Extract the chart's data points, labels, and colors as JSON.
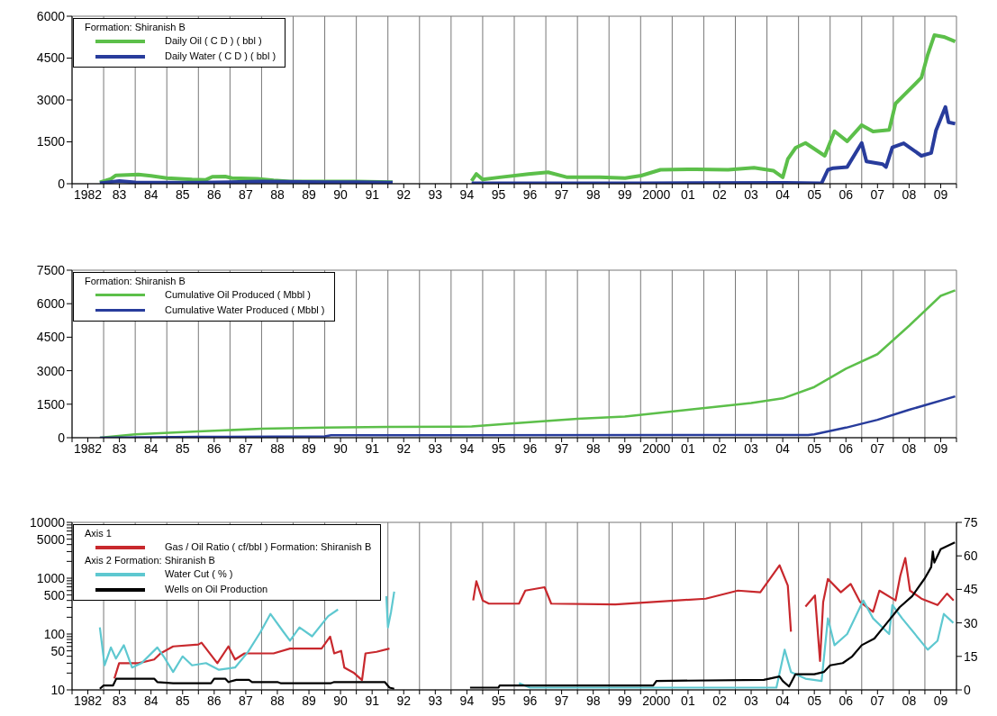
{
  "chart_data": [
    {
      "type": "line",
      "legend_title": "Formation: Shiranish B",
      "legend": "top left",
      "grid": true,
      "xlim": [
        1981.5,
        2009.5
      ],
      "ylim": [
        0,
        6000
      ],
      "yticks": [
        0,
        1500,
        3000,
        4500,
        6000
      ],
      "xticks": [
        {
          "value": 1981.5,
          "label": null
        },
        {
          "value": 1982,
          "label": "1982"
        },
        {
          "value": 1982.5,
          "label": null
        },
        {
          "value": 1983,
          "label": "83"
        },
        {
          "value": 1983.5,
          "label": null
        },
        {
          "value": 1984,
          "label": "84"
        },
        {
          "value": 1984.5,
          "label": null
        },
        {
          "value": 1985,
          "label": "85"
        },
        {
          "value": 1985.5,
          "label": null
        },
        {
          "value": 1986,
          "label": "86"
        },
        {
          "value": 1986.5,
          "label": null
        },
        {
          "value": 1987,
          "label": "87"
        },
        {
          "value": 1987.5,
          "label": null
        },
        {
          "value": 1988,
          "label": "88"
        },
        {
          "value": 1988.5,
          "label": null
        },
        {
          "value": 1989,
          "label": "89"
        },
        {
          "value": 1989.5,
          "label": null
        },
        {
          "value": 1990,
          "label": "90"
        },
        {
          "value": 1990.5,
          "label": null
        },
        {
          "value": 1991,
          "label": "91"
        },
        {
          "value": 1991.5,
          "label": null
        },
        {
          "value": 1992,
          "label": "92"
        },
        {
          "value": 1992.5,
          "label": null
        },
        {
          "value": 1993,
          "label": "93"
        },
        {
          "value": 1993.5,
          "label": null
        },
        {
          "value": 1994,
          "label": "94"
        },
        {
          "value": 1994.5,
          "label": null
        },
        {
          "value": 1995,
          "label": "95"
        },
        {
          "value": 1995.5,
          "label": null
        },
        {
          "value": 1996,
          "label": "96"
        },
        {
          "value": 1996.5,
          "label": null
        },
        {
          "value": 1997,
          "label": "97"
        },
        {
          "value": 1997.5,
          "label": null
        },
        {
          "value": 1998,
          "label": "98"
        },
        {
          "value": 1998.5,
          "label": null
        },
        {
          "value": 1999,
          "label": "99"
        },
        {
          "value": 1999.5,
          "label": null
        },
        {
          "value": 2000,
          "label": "2000"
        },
        {
          "value": 2000.5,
          "label": null
        },
        {
          "value": 2001,
          "label": "01"
        },
        {
          "value": 2001.5,
          "label": null
        },
        {
          "value": 2002,
          "label": "02"
        },
        {
          "value": 2002.5,
          "label": null
        },
        {
          "value": 2003,
          "label": "03"
        },
        {
          "value": 2003.5,
          "label": null
        },
        {
          "value": 2004,
          "label": "04"
        },
        {
          "value": 2004.5,
          "label": null
        },
        {
          "value": 2005,
          "label": "05"
        },
        {
          "value": 2005.5,
          "label": null
        },
        {
          "value": 2006,
          "label": "06"
        },
        {
          "value": 2006.5,
          "label": null
        },
        {
          "value": 2007,
          "label": "07"
        },
        {
          "value": 2007.5,
          "label": null
        },
        {
          "value": 2008,
          "label": "08"
        },
        {
          "value": 2008.5,
          "label": null
        },
        {
          "value": 2009,
          "label": "09"
        },
        {
          "value": 2009.5,
          "label": null
        }
      ],
      "series": [
        {
          "name": "Daily Oil ( C D ) ( bbl )",
          "color": "#5cbf4a",
          "x": [
            1982.38,
            1982.73,
            1982.89,
            1983.6,
            1984.0,
            1984.5,
            1985.3,
            1985.74,
            1985.94,
            1986.35,
            1986.56,
            1987.37,
            1987.88,
            1988.4,
            1989.4,
            1990.5,
            1991.65,
            1992.5,
            1994.15,
            1994.3,
            1994.5,
            1995.04,
            1995.95,
            1996.57,
            1997.18,
            1998.2,
            1999.01,
            1999.52,
            2000.13,
            2001.25,
            2002.27,
            2003.09,
            2003.7,
            2004.0,
            2004.16,
            2004.41,
            2004.72,
            2005.33,
            2005.64,
            2006.04,
            2006.5,
            2006.86,
            2007.37,
            2007.57,
            2007.88,
            2008.39,
            2008.59,
            2008.8,
            2009.1,
            2009.46
          ],
          "values": [
            50,
            170,
            300,
            330,
            280,
            200,
            150,
            140,
            250,
            260,
            200,
            180,
            120,
            80,
            80,
            80,
            60,
            null,
            100,
            350,
            150,
            230,
            350,
            410,
            230,
            230,
            200,
            290,
            500,
            520,
            500,
            570,
            470,
            230,
            880,
            1290,
            1460,
            1000,
            1880,
            1520,
            2100,
            1870,
            1930,
            2870,
            3220,
            3800,
            4620,
            5320,
            5260,
            5090
          ]
        },
        {
          "name": "Daily Water ( C D ) ( bbl )",
          "color": "#283c9c",
          "x": [
            1982.38,
            1983.0,
            1983.5,
            1985.5,
            1987.5,
            1989.5,
            1990.5,
            1991.65,
            1992.5,
            1994.15,
            1999.5,
            2004.1,
            2005.23,
            2005.43,
            2005.6,
            2006.04,
            2006.5,
            2006.65,
            2007.16,
            2007.27,
            2007.47,
            2007.83,
            2008.39,
            2008.7,
            2008.85,
            2009.15,
            2009.25,
            2009.46
          ],
          "values": [
            20,
            100,
            50,
            40,
            80,
            60,
            60,
            40,
            null,
            20,
            20,
            30,
            20,
            500,
            560,
            600,
            1460,
            800,
            700,
            600,
            1300,
            1450,
            1000,
            1100,
            1900,
            2750,
            2200,
            2150
          ]
        }
      ]
    },
    {
      "type": "line",
      "legend_title": "Formation: Shiranish B",
      "legend": "top left",
      "grid": true,
      "xlim": [
        1981.5,
        2009.5
      ],
      "ylim": [
        0,
        7500
      ],
      "yticks": [
        0,
        1500,
        3000,
        4500,
        6000,
        7500
      ],
      "xticks": [
        {
          "value": 1981.5,
          "label": null
        },
        {
          "value": 1982,
          "label": "1982"
        },
        {
          "value": 1982.5,
          "label": null
        },
        {
          "value": 1983,
          "label": "83"
        },
        {
          "value": 1983.5,
          "label": null
        },
        {
          "value": 1984,
          "label": "84"
        },
        {
          "value": 1984.5,
          "label": null
        },
        {
          "value": 1985,
          "label": "85"
        },
        {
          "value": 1985.5,
          "label": null
        },
        {
          "value": 1986,
          "label": "86"
        },
        {
          "value": 1986.5,
          "label": null
        },
        {
          "value": 1987,
          "label": "87"
        },
        {
          "value": 1987.5,
          "label": null
        },
        {
          "value": 1988,
          "label": "88"
        },
        {
          "value": 1988.5,
          "label": null
        },
        {
          "value": 1989,
          "label": "89"
        },
        {
          "value": 1989.5,
          "label": null
        },
        {
          "value": 1990,
          "label": "90"
        },
        {
          "value": 1990.5,
          "label": null
        },
        {
          "value": 1991,
          "label": "91"
        },
        {
          "value": 1991.5,
          "label": null
        },
        {
          "value": 1992,
          "label": "92"
        },
        {
          "value": 1992.5,
          "label": null
        },
        {
          "value": 1993,
          "label": "93"
        },
        {
          "value": 1993.5,
          "label": null
        },
        {
          "value": 1994,
          "label": "94"
        },
        {
          "value": 1994.5,
          "label": null
        },
        {
          "value": 1995,
          "label": "95"
        },
        {
          "value": 1995.5,
          "label": null
        },
        {
          "value": 1996,
          "label": "96"
        },
        {
          "value": 1996.5,
          "label": null
        },
        {
          "value": 1997,
          "label": "97"
        },
        {
          "value": 1997.5,
          "label": null
        },
        {
          "value": 1998,
          "label": "98"
        },
        {
          "value": 1998.5,
          "label": null
        },
        {
          "value": 1999,
          "label": "99"
        },
        {
          "value": 1999.5,
          "label": null
        },
        {
          "value": 2000,
          "label": "2000"
        },
        {
          "value": 2000.5,
          "label": null
        },
        {
          "value": 2001,
          "label": "01"
        },
        {
          "value": 2001.5,
          "label": null
        },
        {
          "value": 2002,
          "label": "02"
        },
        {
          "value": 2002.5,
          "label": null
        },
        {
          "value": 2003,
          "label": "03"
        },
        {
          "value": 2003.5,
          "label": null
        },
        {
          "value": 2004,
          "label": "04"
        },
        {
          "value": 2004.5,
          "label": null
        },
        {
          "value": 2005,
          "label": "05"
        },
        {
          "value": 2005.5,
          "label": null
        },
        {
          "value": 2006,
          "label": "06"
        },
        {
          "value": 2006.5,
          "label": null
        },
        {
          "value": 2007,
          "label": "07"
        },
        {
          "value": 2007.5,
          "label": null
        },
        {
          "value": 2008,
          "label": "08"
        },
        {
          "value": 2008.5,
          "label": null
        },
        {
          "value": 2009,
          "label": "09"
        },
        {
          "value": 2009.5,
          "label": null
        }
      ],
      "series": [
        {
          "name": "Cumulative Oil Produced ( Mbbl )",
          "color": "#5cbf4a",
          "x": [
            1982.38,
            1983.5,
            1985.5,
            1987.5,
            1989.5,
            1991.5,
            1994.15,
            1995.5,
            1997.5,
            1999.0,
            2000.0,
            2001.0,
            2002.0,
            2003.0,
            2004.0,
            2005.0,
            2006.0,
            2007.0,
            2008.0,
            2009.0,
            2009.46
          ],
          "values": [
            0,
            150,
            280,
            400,
            450,
            480,
            500,
            650,
            850,
            950,
            1100,
            1250,
            1400,
            1550,
            1760,
            2270,
            3090,
            3740,
            5010,
            6350,
            6600
          ]
        },
        {
          "name": "Cumulative Water Produced ( Mbbl )",
          "color": "#283c9c",
          "x": [
            1982.38,
            1985.5,
            1989.5,
            1989.7,
            2004.8,
            2005.0,
            2006.0,
            2007.0,
            2008.0,
            2009.46
          ],
          "values": [
            0,
            40,
            60,
            110,
            120,
            150,
            450,
            800,
            1250,
            1850
          ]
        }
      ]
    },
    {
      "type": "line",
      "legend_title": "Axis 1",
      "annotations": [
        "Axis 2  Formation: Shiranish B"
      ],
      "legend": "top left",
      "grid": true,
      "log": "y",
      "xlim": [
        1981.5,
        2009.5
      ],
      "ylim": [
        10,
        10000
      ],
      "y2lim": [
        0,
        75
      ],
      "y2ticks": [
        0,
        15,
        30,
        45,
        60,
        75
      ],
      "yticks": [
        10,
        {
          "value": 20,
          "label": null
        },
        {
          "value": 30,
          "label": null
        },
        {
          "value": 40,
          "label": null
        },
        50,
        {
          "value": 60,
          "label": null
        },
        {
          "value": 70,
          "label": null
        },
        {
          "value": 80,
          "label": null
        },
        {
          "value": 90,
          "label": null
        },
        100,
        {
          "value": 200,
          "label": null
        },
        {
          "value": 300,
          "label": null
        },
        {
          "value": 400,
          "label": null
        },
        500,
        {
          "value": 600,
          "label": null
        },
        {
          "value": 700,
          "label": null
        },
        {
          "value": 800,
          "label": null
        },
        {
          "value": 900,
          "label": null
        },
        1000,
        {
          "value": 2000,
          "label": null
        },
        {
          "value": 3000,
          "label": null
        },
        {
          "value": 4000,
          "label": null
        },
        5000,
        {
          "value": 6000,
          "label": null
        },
        {
          "value": 7000,
          "label": null
        },
        {
          "value": 8000,
          "label": null
        },
        {
          "value": 9000,
          "label": null
        },
        10000
      ],
      "xticks": [
        {
          "value": 1981.5,
          "label": null
        },
        {
          "value": 1982,
          "label": "1982"
        },
        {
          "value": 1982.5,
          "label": null
        },
        {
          "value": 1983,
          "label": "83"
        },
        {
          "value": 1983.5,
          "label": null
        },
        {
          "value": 1984,
          "label": "84"
        },
        {
          "value": 1984.5,
          "label": null
        },
        {
          "value": 1985,
          "label": "85"
        },
        {
          "value": 1985.5,
          "label": null
        },
        {
          "value": 1986,
          "label": "86"
        },
        {
          "value": 1986.5,
          "label": null
        },
        {
          "value": 1987,
          "label": "87"
        },
        {
          "value": 1987.5,
          "label": null
        },
        {
          "value": 1988,
          "label": "88"
        },
        {
          "value": 1988.5,
          "label": null
        },
        {
          "value": 1989,
          "label": "89"
        },
        {
          "value": 1989.5,
          "label": null
        },
        {
          "value": 1990,
          "label": "90"
        },
        {
          "value": 1990.5,
          "label": null
        },
        {
          "value": 1991,
          "label": "91"
        },
        {
          "value": 1991.5,
          "label": null
        },
        {
          "value": 1992,
          "label": "92"
        },
        {
          "value": 1992.5,
          "label": null
        },
        {
          "value": 1993,
          "label": "93"
        },
        {
          "value": 1993.5,
          "label": null
        },
        {
          "value": 1994,
          "label": "94"
        },
        {
          "value": 1994.5,
          "label": null
        },
        {
          "value": 1995,
          "label": "95"
        },
        {
          "value": 1995.5,
          "label": null
        },
        {
          "value": 1996,
          "label": "96"
        },
        {
          "value": 1996.5,
          "label": null
        },
        {
          "value": 1997,
          "label": "97"
        },
        {
          "value": 1997.5,
          "label": null
        },
        {
          "value": 1998,
          "label": "98"
        },
        {
          "value": 1998.5,
          "label": null
        },
        {
          "value": 1999,
          "label": "99"
        },
        {
          "value": 1999.5,
          "label": null
        },
        {
          "value": 2000,
          "label": "2000"
        },
        {
          "value": 2000.5,
          "label": null
        },
        {
          "value": 2001,
          "label": "01"
        },
        {
          "value": 2001.5,
          "label": null
        },
        {
          "value": 2002,
          "label": "02"
        },
        {
          "value": 2002.5,
          "label": null
        },
        {
          "value": 2003,
          "label": "03"
        },
        {
          "value": 2003.5,
          "label": null
        },
        {
          "value": 2004,
          "label": "04"
        },
        {
          "value": 2004.5,
          "label": null
        },
        {
          "value": 2005,
          "label": "05"
        },
        {
          "value": 2005.5,
          "label": null
        },
        {
          "value": 2006,
          "label": "06"
        },
        {
          "value": 2006.5,
          "label": null
        },
        {
          "value": 2007,
          "label": "07"
        },
        {
          "value": 2007.5,
          "label": null
        },
        {
          "value": 2008,
          "label": "08"
        },
        {
          "value": 2008.5,
          "label": null
        },
        {
          "value": 2009,
          "label": "09"
        },
        {
          "value": 2009.5,
          "label": null
        }
      ],
      "series": [
        {
          "name": "Gas / Oil Ratio ( cf/bbl ) Formation: Shiranish B",
          "color": "#c8282d",
          "x": [
            1982.84,
            1982.99,
            1983.6,
            1984.1,
            1984.3,
            1984.7,
            1985.5,
            1985.6,
            1986.1,
            1986.45,
            1986.66,
            1986.96,
            1987.88,
            1988.4,
            1989.4,
            1989.67,
            1989.8,
            1990.02,
            1990.12,
            1990.43,
            1990.68,
            1990.79,
            1991.14,
            1991.55,
            1992.5,
            1994.2,
            1994.3,
            1994.5,
            1994.7,
            1995.65,
            1995.85,
            1996.46,
            1996.67,
            1998.7,
            2001.56,
            2002.58,
            2003.29,
            2003.9,
            2004.16,
            2004.26,
            2004.5,
            2004.72,
            2005.02,
            2005.18,
            2005.28,
            2005.43,
            2005.84,
            2006.15,
            2006.45,
            2006.86,
            2007.06,
            2007.57,
            2007.72,
            2007.88,
            2008.03,
            2008.39,
            2008.9,
            2009.2,
            2009.41
          ],
          "values": [
            16,
            30,
            30,
            35,
            45,
            60,
            65,
            70,
            30,
            60,
            35,
            45,
            45,
            55,
            55,
            90,
            45,
            50,
            25,
            20,
            15,
            45,
            48,
            55,
            null,
            400,
            880,
            400,
            350,
            350,
            600,
            690,
            350,
            340,
            430,
            600,
            560,
            1700,
            740,
            110,
            null,
            310,
            490,
            33,
            375,
            970,
            560,
            790,
            375,
            250,
            600,
            400,
            1100,
            2300,
            600,
            430,
            330,
            530,
            400
          ]
        },
        {
          "name": "Water Cut ( % )",
          "color": "#5ec8d0",
          "axis": "y2",
          "x": [
            1982.38,
            1982.53,
            1982.73,
            1982.89,
            1983.14,
            1983.4,
            1983.7,
            1984.2,
            1984.4,
            1984.7,
            1985.0,
            1985.3,
            1985.74,
            1986.15,
            1986.66,
            1987.07,
            1987.47,
            1987.78,
            1988.19,
            1988.4,
            1988.7,
            1989.1,
            1989.61,
            1989.92,
            1990.7,
            1991.45,
            1991.5,
            1991.6,
            1991.7,
            1992.5,
            1994.2,
            1995.0,
            1995.65,
            1996.0,
            1999.5,
            2003.8,
            2004.06,
            2004.26,
            2004.72,
            2005.23,
            2005.43,
            2005.64,
            2006.04,
            2006.55,
            2006.86,
            2007.37,
            2007.47,
            2007.78,
            2008.59,
            2008.9,
            2009.1,
            2009.4
          ],
          "values": [
            28,
            11,
            19,
            14,
            20,
            10,
            12,
            19,
            15,
            8,
            15,
            11,
            12,
            9,
            10,
            17,
            26,
            34,
            26,
            22,
            28,
            24,
            33,
            36,
            null,
            42,
            28,
            35,
            44,
            null,
            null,
            null,
            3,
            1,
            1,
            1,
            18,
            8,
            5,
            4,
            32,
            20,
            25,
            40,
            32,
            25,
            38,
            32,
            18,
            22,
            34,
            30
          ]
        },
        {
          "name": "Wells on Oil Production",
          "color": "#000000",
          "axis": "y2",
          "x": [
            1982.38,
            1982.5,
            1982.8,
            1982.9,
            1984.1,
            1984.2,
            1984.7,
            1985.9,
            1986.0,
            1986.35,
            1986.45,
            1986.7,
            1987.1,
            1987.2,
            1988.0,
            1988.1,
            1989.7,
            1989.8,
            1991.4,
            1991.55,
            1991.7,
            1992.5,
            1994.1,
            1995.0,
            1995.04,
            1999.9,
            2000.0,
            2003.4,
            2003.9,
            2004.0,
            2004.2,
            2004.4,
            2005.0,
            2005.3,
            2005.5,
            2005.9,
            2006.2,
            2006.5,
            2006.9,
            2007.3,
            2007.7,
            2008.1,
            2008.5,
            2008.7,
            2008.75,
            2008.8,
            2009.0,
            2009.45
          ],
          "values": [
            0.5,
            2,
            2,
            5,
            5,
            3.5,
            3,
            3,
            5,
            5,
            3.5,
            4.5,
            4.5,
            3.5,
            3.5,
            3,
            3,
            3.5,
            3.5,
            1,
            0.5,
            null,
            1,
            1,
            2,
            2,
            4,
            4.5,
            6,
            4,
            1.5,
            7,
            7,
            8,
            11,
            12,
            15,
            20,
            23,
            30,
            37,
            42,
            50,
            55,
            62,
            57,
            63,
            66
          ]
        }
      ]
    }
  ]
}
